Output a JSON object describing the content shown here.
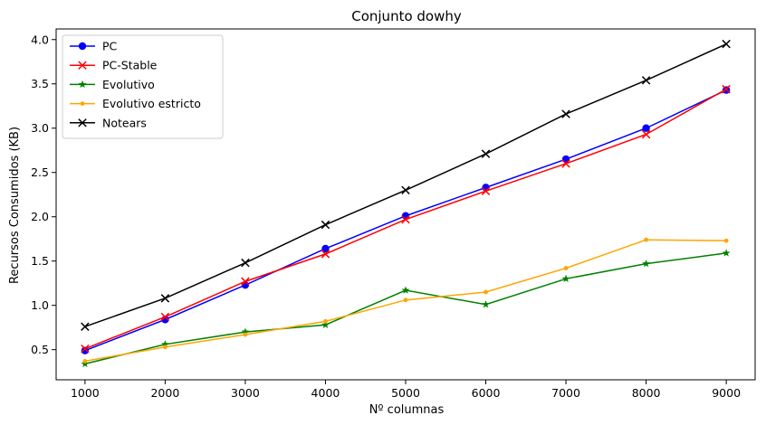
{
  "chart_data": {
    "type": "line",
    "title": "Conjunto  dowhy",
    "xlabel": "Nº columnas",
    "ylabel": "Recursos Consumidos (KB)",
    "x": [
      1000,
      2000,
      3000,
      4000,
      5000,
      6000,
      7000,
      8000,
      9000
    ],
    "xticks": [
      "1000",
      "2000",
      "3000",
      "4000",
      "5000",
      "6000",
      "7000",
      "8000",
      "9000"
    ],
    "yticks": [
      0.5,
      1.0,
      1.5,
      2.0,
      2.5,
      3.0,
      3.5,
      4.0
    ],
    "ytick_labels": [
      "0.5",
      "1.0",
      "1.5",
      "2.0",
      "2.5",
      "3.0",
      "3.5",
      "4.0"
    ],
    "xlim": [
      640,
      9360
    ],
    "ylim": [
      0.16,
      4.12
    ],
    "grid": false,
    "legend_position": "top-left",
    "series": [
      {
        "name": "PC",
        "color": "#0000ff",
        "marker": "circle",
        "values": [
          0.49,
          0.84,
          1.23,
          1.64,
          2.01,
          2.33,
          2.65,
          3.0,
          3.43
        ]
      },
      {
        "name": "PC-Stable",
        "color": "#ff0000",
        "marker": "x",
        "values": [
          0.51,
          0.87,
          1.27,
          1.58,
          1.97,
          2.29,
          2.6,
          2.93,
          3.44
        ]
      },
      {
        "name": "Evolutivo",
        "color": "#008000",
        "marker": "star",
        "values": [
          0.34,
          0.56,
          0.7,
          0.78,
          1.17,
          1.01,
          1.3,
          1.47,
          1.59
        ]
      },
      {
        "name": "Evolutivo estricto",
        "color": "#ffa500",
        "marker": "dot",
        "values": [
          0.37,
          0.53,
          0.67,
          0.82,
          1.06,
          1.15,
          1.42,
          1.74,
          1.73
        ]
      },
      {
        "name": "Notears",
        "color": "#000000",
        "marker": "x",
        "values": [
          0.76,
          1.08,
          1.48,
          1.91,
          2.3,
          2.71,
          3.16,
          3.54,
          3.95
        ]
      }
    ]
  }
}
